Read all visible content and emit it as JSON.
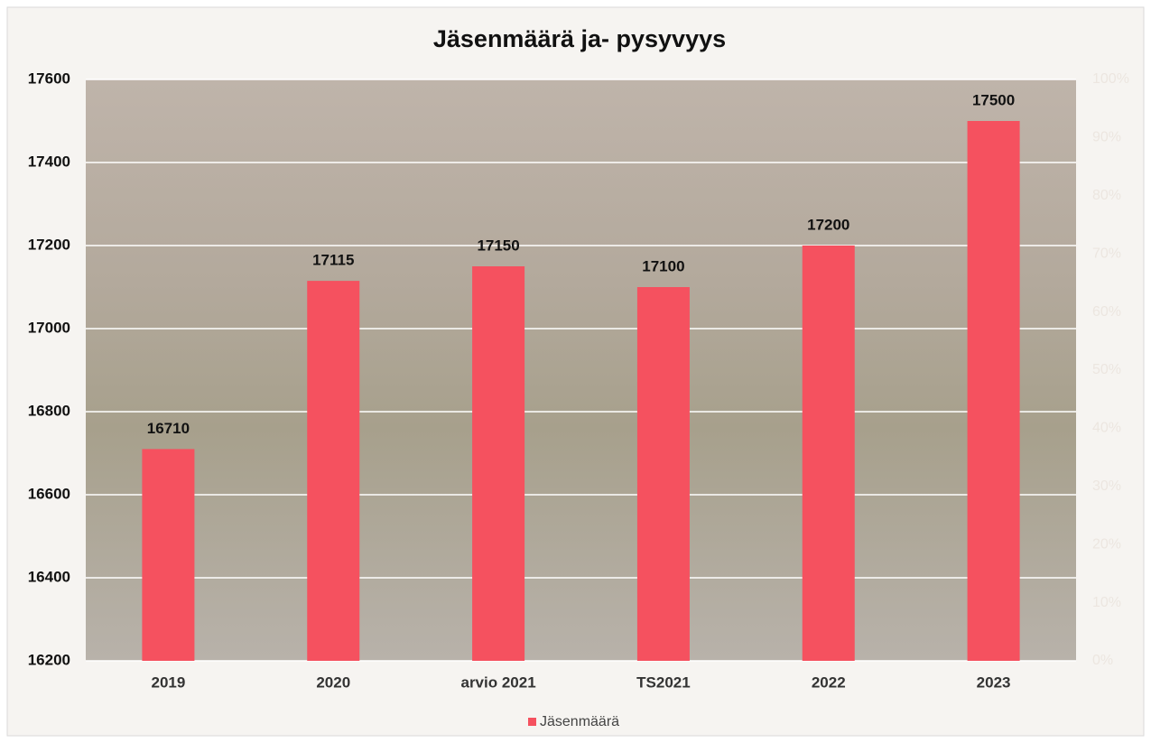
{
  "chart_data": {
    "type": "bar",
    "title": "Jäsenmäärä ja- pysyvyys",
    "categories": [
      "2019",
      "2020",
      "arvio 2021",
      "TS2021",
      "2022",
      "2023"
    ],
    "series": [
      {
        "name": "Jäsenmäärä",
        "color": "#f5515f",
        "values": [
          16710,
          17115,
          17150,
          17100,
          17200,
          17500
        ]
      }
    ],
    "ylim": [
      16200,
      17600
    ],
    "yticks": [
      16200,
      16400,
      16600,
      16800,
      17000,
      17200,
      17400,
      17600
    ],
    "y2lim": [
      0,
      100
    ],
    "y2ticks": [
      {
        "value": 0,
        "label": "0%"
      },
      {
        "value": 10,
        "label": "10%"
      },
      {
        "value": 20,
        "label": "20%"
      },
      {
        "value": 30,
        "label": "30%"
      },
      {
        "value": 40,
        "label": "40%"
      },
      {
        "value": 50,
        "label": "50%"
      },
      {
        "value": 60,
        "label": "60%"
      },
      {
        "value": 70,
        "label": "70%"
      },
      {
        "value": 80,
        "label": "80%"
      },
      {
        "value": 90,
        "label": "90%"
      },
      {
        "value": 100,
        "label": "100%"
      }
    ],
    "grid": true,
    "legend": "bottom"
  }
}
